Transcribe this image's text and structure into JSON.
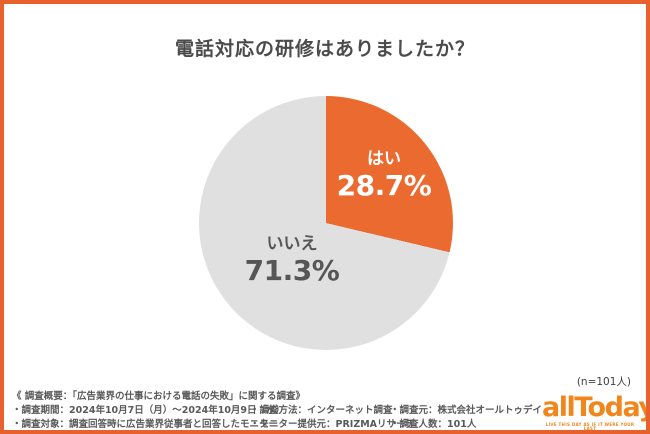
{
  "title": "電話対応の研修はありましたか？",
  "accent_border_color": "#e8612d",
  "chart_data": {
    "type": "pie",
    "title": "電話対応の研修はありましたか？",
    "start_angle_deg": 0,
    "direction": "clockwise",
    "slices": [
      {
        "label": "はい",
        "value": 28.7,
        "display": "28.7%",
        "color": "#eb6a2f",
        "text_color": "#ffffff"
      },
      {
        "label": "いいえ",
        "value": 71.3,
        "display": "71.3%",
        "color": "#e0e0e1",
        "text_color": "#565656"
      }
    ],
    "n": 101
  },
  "n_label": "(n=101人)",
  "survey": {
    "heading": "《 調査概要：「広告業界の仕事における電話の失敗」に関する調査》",
    "rows": [
      [
        "・調査期間：2024年10月7日（月）～2024年10月9日（水）",
        "・調査方法：インターネット調査",
        "・調査元：株式会社オールトゥデイ"
      ],
      [
        "・調査対象：調査回答時に広告業界従事者と回答したモニター",
        "・モニター提供元：PRIZMAリサーチ",
        "・調査人数：101人"
      ]
    ]
  },
  "logo": {
    "wordmark": "allToday",
    "tagline": "LIVE THIS DAY AS IF IT WERE YOUR LAST",
    "color": "#f0861c"
  }
}
